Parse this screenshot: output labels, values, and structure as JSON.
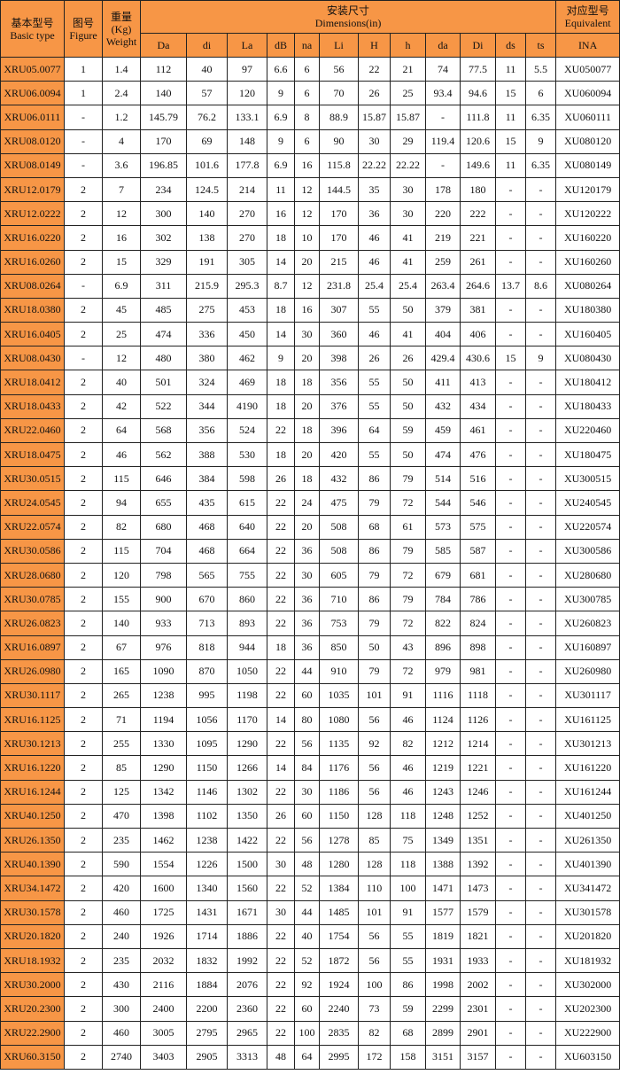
{
  "header": {
    "basic_type_cn": "基本型号",
    "basic_type_en": "Basic type",
    "figure_cn": "图号",
    "figure_en": "Figure",
    "weight_cn": "重量",
    "weight_unit": "(Kg)",
    "weight_en": "Weight",
    "dimensions_cn": "安装尺寸",
    "dimensions_en": "Dimensions(in)",
    "equivalent_cn": "对应型号",
    "equivalent_en": "Equivalent",
    "dim_columns": [
      "Da",
      "di",
      "La",
      "dB",
      "na",
      "Li",
      "H",
      "h",
      "da",
      "Di",
      "ds",
      "ts"
    ],
    "ina": "INA"
  },
  "colors": {
    "header_bg": "#F79646",
    "model_bg": "#F79646"
  },
  "rows": [
    [
      "XRU05.0077",
      "1",
      "1.4",
      "112",
      "40",
      "97",
      "6.6",
      "6",
      "56",
      "22",
      "21",
      "74",
      "77.5",
      "11",
      "5.5",
      "XU050077"
    ],
    [
      "XRU06.0094",
      "1",
      "2.4",
      "140",
      "57",
      "120",
      "9",
      "6",
      "70",
      "26",
      "25",
      "93.4",
      "94.6",
      "15",
      "6",
      "XU060094"
    ],
    [
      "XRU06.0111",
      "-",
      "1.2",
      "145.79",
      "76.2",
      "133.1",
      "6.9",
      "8",
      "88.9",
      "15.87",
      "15.87",
      "-",
      "111.8",
      "11",
      "6.35",
      "XU060111"
    ],
    [
      "XRU08.0120",
      "-",
      "4",
      "170",
      "69",
      "148",
      "9",
      "6",
      "90",
      "30",
      "29",
      "119.4",
      "120.6",
      "15",
      "9",
      "XU080120"
    ],
    [
      "XRU08.0149",
      "-",
      "3.6",
      "196.85",
      "101.6",
      "177.8",
      "6.9",
      "16",
      "115.8",
      "22.22",
      "22.22",
      "-",
      "149.6",
      "11",
      "6.35",
      "XU080149"
    ],
    [
      "XRU12.0179",
      "2",
      "7",
      "234",
      "124.5",
      "214",
      "11",
      "12",
      "144.5",
      "35",
      "30",
      "178",
      "180",
      "-",
      "-",
      "XU120179"
    ],
    [
      "XRU12.0222",
      "2",
      "12",
      "300",
      "140",
      "270",
      "16",
      "12",
      "170",
      "36",
      "30",
      "220",
      "222",
      "-",
      "-",
      "XU120222"
    ],
    [
      "XRU16.0220",
      "2",
      "16",
      "302",
      "138",
      "270",
      "18",
      "10",
      "170",
      "46",
      "41",
      "219",
      "221",
      "-",
      "-",
      "XU160220"
    ],
    [
      "XRU16.0260",
      "2",
      "15",
      "329",
      "191",
      "305",
      "14",
      "20",
      "215",
      "46",
      "41",
      "259",
      "261",
      "-",
      "-",
      "XU160260"
    ],
    [
      "XRU08.0264",
      "-",
      "6.9",
      "311",
      "215.9",
      "295.3",
      "8.7",
      "12",
      "231.8",
      "25.4",
      "25.4",
      "263.4",
      "264.6",
      "13.7",
      "8.6",
      "XU080264"
    ],
    [
      "XRU18.0380",
      "2",
      "45",
      "485",
      "275",
      "453",
      "18",
      "16",
      "307",
      "55",
      "50",
      "379",
      "381",
      "-",
      "-",
      "XU180380"
    ],
    [
      "XRU16.0405",
      "2",
      "25",
      "474",
      "336",
      "450",
      "14",
      "30",
      "360",
      "46",
      "41",
      "404",
      "406",
      "-",
      "-",
      "XU160405"
    ],
    [
      "XRU08.0430",
      "-",
      "12",
      "480",
      "380",
      "462",
      "9",
      "20",
      "398",
      "26",
      "26",
      "429.4",
      "430.6",
      "15",
      "9",
      "XU080430"
    ],
    [
      "XRU18.0412",
      "2",
      "40",
      "501",
      "324",
      "469",
      "18",
      "18",
      "356",
      "55",
      "50",
      "411",
      "413",
      "-",
      "-",
      "XU180412"
    ],
    [
      "XRU18.0433",
      "2",
      "42",
      "522",
      "344",
      "4190",
      "18",
      "20",
      "376",
      "55",
      "50",
      "432",
      "434",
      "-",
      "-",
      "XU180433"
    ],
    [
      "XRU22.0460",
      "2",
      "64",
      "568",
      "356",
      "524",
      "22",
      "18",
      "396",
      "64",
      "59",
      "459",
      "461",
      "-",
      "-",
      "XU220460"
    ],
    [
      "XRU18.0475",
      "2",
      "46",
      "562",
      "388",
      "530",
      "18",
      "20",
      "420",
      "55",
      "50",
      "474",
      "476",
      "-",
      "-",
      "XU180475"
    ],
    [
      "XRU30.0515",
      "2",
      "115",
      "646",
      "384",
      "598",
      "26",
      "18",
      "432",
      "86",
      "79",
      "514",
      "516",
      "-",
      "-",
      "XU300515"
    ],
    [
      "XRU24.0545",
      "2",
      "94",
      "655",
      "435",
      "615",
      "22",
      "24",
      "475",
      "79",
      "72",
      "544",
      "546",
      "-",
      "-",
      "XU240545"
    ],
    [
      "XRU22.0574",
      "2",
      "82",
      "680",
      "468",
      "640",
      "22",
      "20",
      "508",
      "68",
      "61",
      "573",
      "575",
      "-",
      "-",
      "XU220574"
    ],
    [
      "XRU30.0586",
      "2",
      "115",
      "704",
      "468",
      "664",
      "22",
      "36",
      "508",
      "86",
      "79",
      "585",
      "587",
      "-",
      "-",
      "XU300586"
    ],
    [
      "XRU28.0680",
      "2",
      "120",
      "798",
      "565",
      "755",
      "22",
      "30",
      "605",
      "79",
      "72",
      "679",
      "681",
      "-",
      "-",
      "XU280680"
    ],
    [
      "XRU30.0785",
      "2",
      "155",
      "900",
      "670",
      "860",
      "22",
      "36",
      "710",
      "86",
      "79",
      "784",
      "786",
      "-",
      "-",
      "XU300785"
    ],
    [
      "XRU26.0823",
      "2",
      "140",
      "933",
      "713",
      "893",
      "22",
      "36",
      "753",
      "79",
      "72",
      "822",
      "824",
      "-",
      "-",
      "XU260823"
    ],
    [
      "XRU16.0897",
      "2",
      "67",
      "976",
      "818",
      "944",
      "18",
      "36",
      "850",
      "50",
      "43",
      "896",
      "898",
      "-",
      "-",
      "XU160897"
    ],
    [
      "XRU26.0980",
      "2",
      "165",
      "1090",
      "870",
      "1050",
      "22",
      "44",
      "910",
      "79",
      "72",
      "979",
      "981",
      "-",
      "-",
      "XU260980"
    ],
    [
      "XRU30.1117",
      "2",
      "265",
      "1238",
      "995",
      "1198",
      "22",
      "60",
      "1035",
      "101",
      "91",
      "1116",
      "1118",
      "-",
      "-",
      "XU301117"
    ],
    [
      "XRU16.1125",
      "2",
      "71",
      "1194",
      "1056",
      "1170",
      "14",
      "80",
      "1080",
      "56",
      "46",
      "1124",
      "1126",
      "-",
      "-",
      "XU161125"
    ],
    [
      "XRU30.1213",
      "2",
      "255",
      "1330",
      "1095",
      "1290",
      "22",
      "56",
      "1135",
      "92",
      "82",
      "1212",
      "1214",
      "-",
      "-",
      "XU301213"
    ],
    [
      "XRU16.1220",
      "2",
      "85",
      "1290",
      "1150",
      "1266",
      "14",
      "84",
      "1176",
      "56",
      "46",
      "1219",
      "1221",
      "-",
      "-",
      "XU161220"
    ],
    [
      "XRU16.1244",
      "2",
      "125",
      "1342",
      "1146",
      "1302",
      "22",
      "30",
      "1186",
      "56",
      "46",
      "1243",
      "1246",
      "-",
      "-",
      "XU161244"
    ],
    [
      "XRU40.1250",
      "2",
      "470",
      "1398",
      "1102",
      "1350",
      "26",
      "60",
      "1150",
      "128",
      "118",
      "1248",
      "1252",
      "-",
      "-",
      "XU401250"
    ],
    [
      "XRU26.1350",
      "2",
      "235",
      "1462",
      "1238",
      "1422",
      "22",
      "56",
      "1278",
      "85",
      "75",
      "1349",
      "1351",
      "-",
      "-",
      "XU261350"
    ],
    [
      "XRU40.1390",
      "2",
      "590",
      "1554",
      "1226",
      "1500",
      "30",
      "48",
      "1280",
      "128",
      "118",
      "1388",
      "1392",
      "-",
      "-",
      "XU401390"
    ],
    [
      "XRU34.1472",
      "2",
      "420",
      "1600",
      "1340",
      "1560",
      "22",
      "52",
      "1384",
      "110",
      "100",
      "1471",
      "1473",
      "-",
      "-",
      "XU341472"
    ],
    [
      "XRU30.1578",
      "2",
      "460",
      "1725",
      "1431",
      "1671",
      "30",
      "44",
      "1485",
      "101",
      "91",
      "1577",
      "1579",
      "-",
      "-",
      "XU301578"
    ],
    [
      "XRU20.1820",
      "2",
      "240",
      "1926",
      "1714",
      "1886",
      "22",
      "40",
      "1754",
      "56",
      "55",
      "1819",
      "1821",
      "-",
      "-",
      "XU201820"
    ],
    [
      "XRU18.1932",
      "2",
      "235",
      "2032",
      "1832",
      "1992",
      "22",
      "52",
      "1872",
      "56",
      "55",
      "1931",
      "1933",
      "-",
      "-",
      "XU181932"
    ],
    [
      "XRU30.2000",
      "2",
      "430",
      "2116",
      "1884",
      "2076",
      "22",
      "92",
      "1924",
      "100",
      "86",
      "1998",
      "2002",
      "-",
      "-",
      "XU302000"
    ],
    [
      "XRU20.2300",
      "2",
      "300",
      "2400",
      "2200",
      "2360",
      "22",
      "60",
      "2240",
      "73",
      "59",
      "2299",
      "2301",
      "-",
      "-",
      "XU202300"
    ],
    [
      "XRU22.2900",
      "2",
      "460",
      "3005",
      "2795",
      "2965",
      "22",
      "100",
      "2835",
      "82",
      "68",
      "2899",
      "2901",
      "-",
      "-",
      "XU222900"
    ],
    [
      "XRU60.3150",
      "2",
      "2740",
      "3403",
      "2905",
      "3313",
      "48",
      "64",
      "2995",
      "172",
      "158",
      "3151",
      "3157",
      "-",
      "-",
      "XU603150"
    ]
  ]
}
